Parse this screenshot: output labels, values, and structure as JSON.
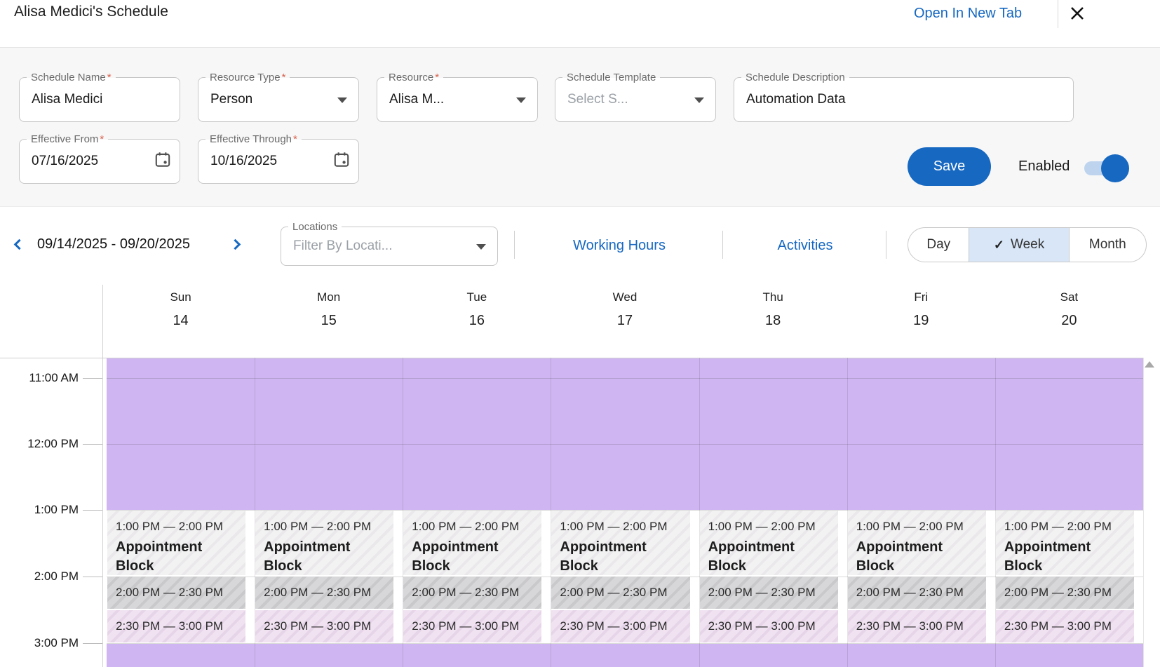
{
  "header": {
    "title": "Alisa Medici's Schedule",
    "open_in_new_tab": "Open In New Tab"
  },
  "form": {
    "required_marker": "*",
    "schedule_name": {
      "label": "Schedule Name",
      "value": "Alisa Medici"
    },
    "resource_type": {
      "label": "Resource Type",
      "value": "Person"
    },
    "resource": {
      "label": "Resource",
      "value": "Alisa M..."
    },
    "schedule_template": {
      "label": "Schedule Template",
      "placeholder": "Select S..."
    },
    "schedule_description": {
      "label": "Schedule Description",
      "value": "Automation Data"
    },
    "effective_from": {
      "label": "Effective From",
      "value": "07/16/2025"
    },
    "effective_through": {
      "label": "Effective Through",
      "value": "10/16/2025"
    },
    "save_label": "Save",
    "enabled_label": "Enabled",
    "enabled_state": "on"
  },
  "toolbar": {
    "date_range": "09/14/2025 - 09/20/2025",
    "locations": {
      "label": "Locations",
      "placeholder": "Filter By Locati..."
    },
    "working_hours_link": "Working Hours",
    "activities_link": "Activities",
    "views": {
      "day": "Day",
      "week": "Week",
      "month": "Month",
      "selected": "Week",
      "check_glyph": "✓"
    }
  },
  "calendar": {
    "days": [
      {
        "name": "Sun",
        "date": "14"
      },
      {
        "name": "Mon",
        "date": "15"
      },
      {
        "name": "Tue",
        "date": "16"
      },
      {
        "name": "Wed",
        "date": "17"
      },
      {
        "name": "Thu",
        "date": "18"
      },
      {
        "name": "Fri",
        "date": "19"
      },
      {
        "name": "Sat",
        "date": "20"
      }
    ],
    "times": [
      "11:00 AM",
      "12:00 PM",
      "1:00 PM",
      "2:00 PM",
      "3:00 PM"
    ],
    "events": [
      {
        "time": "1:00 PM — 2:00 PM",
        "title": "Appointment Block",
        "style": "light"
      },
      {
        "time": "2:00 PM — 2:30 PM",
        "title": "",
        "style": "gray"
      },
      {
        "time": "2:30 PM — 3:00 PM",
        "title": "",
        "style": "pink"
      }
    ],
    "colors": {
      "accent": "#1668c1",
      "required_asterisk": "#d9634d",
      "unavailable_purple": "#cfb5f1",
      "event_light": "#f3f2f3",
      "event_gray": "#d7d6d8",
      "event_pink": "#f0e2f1",
      "selected_view_bg": "#d8e6f7"
    }
  }
}
